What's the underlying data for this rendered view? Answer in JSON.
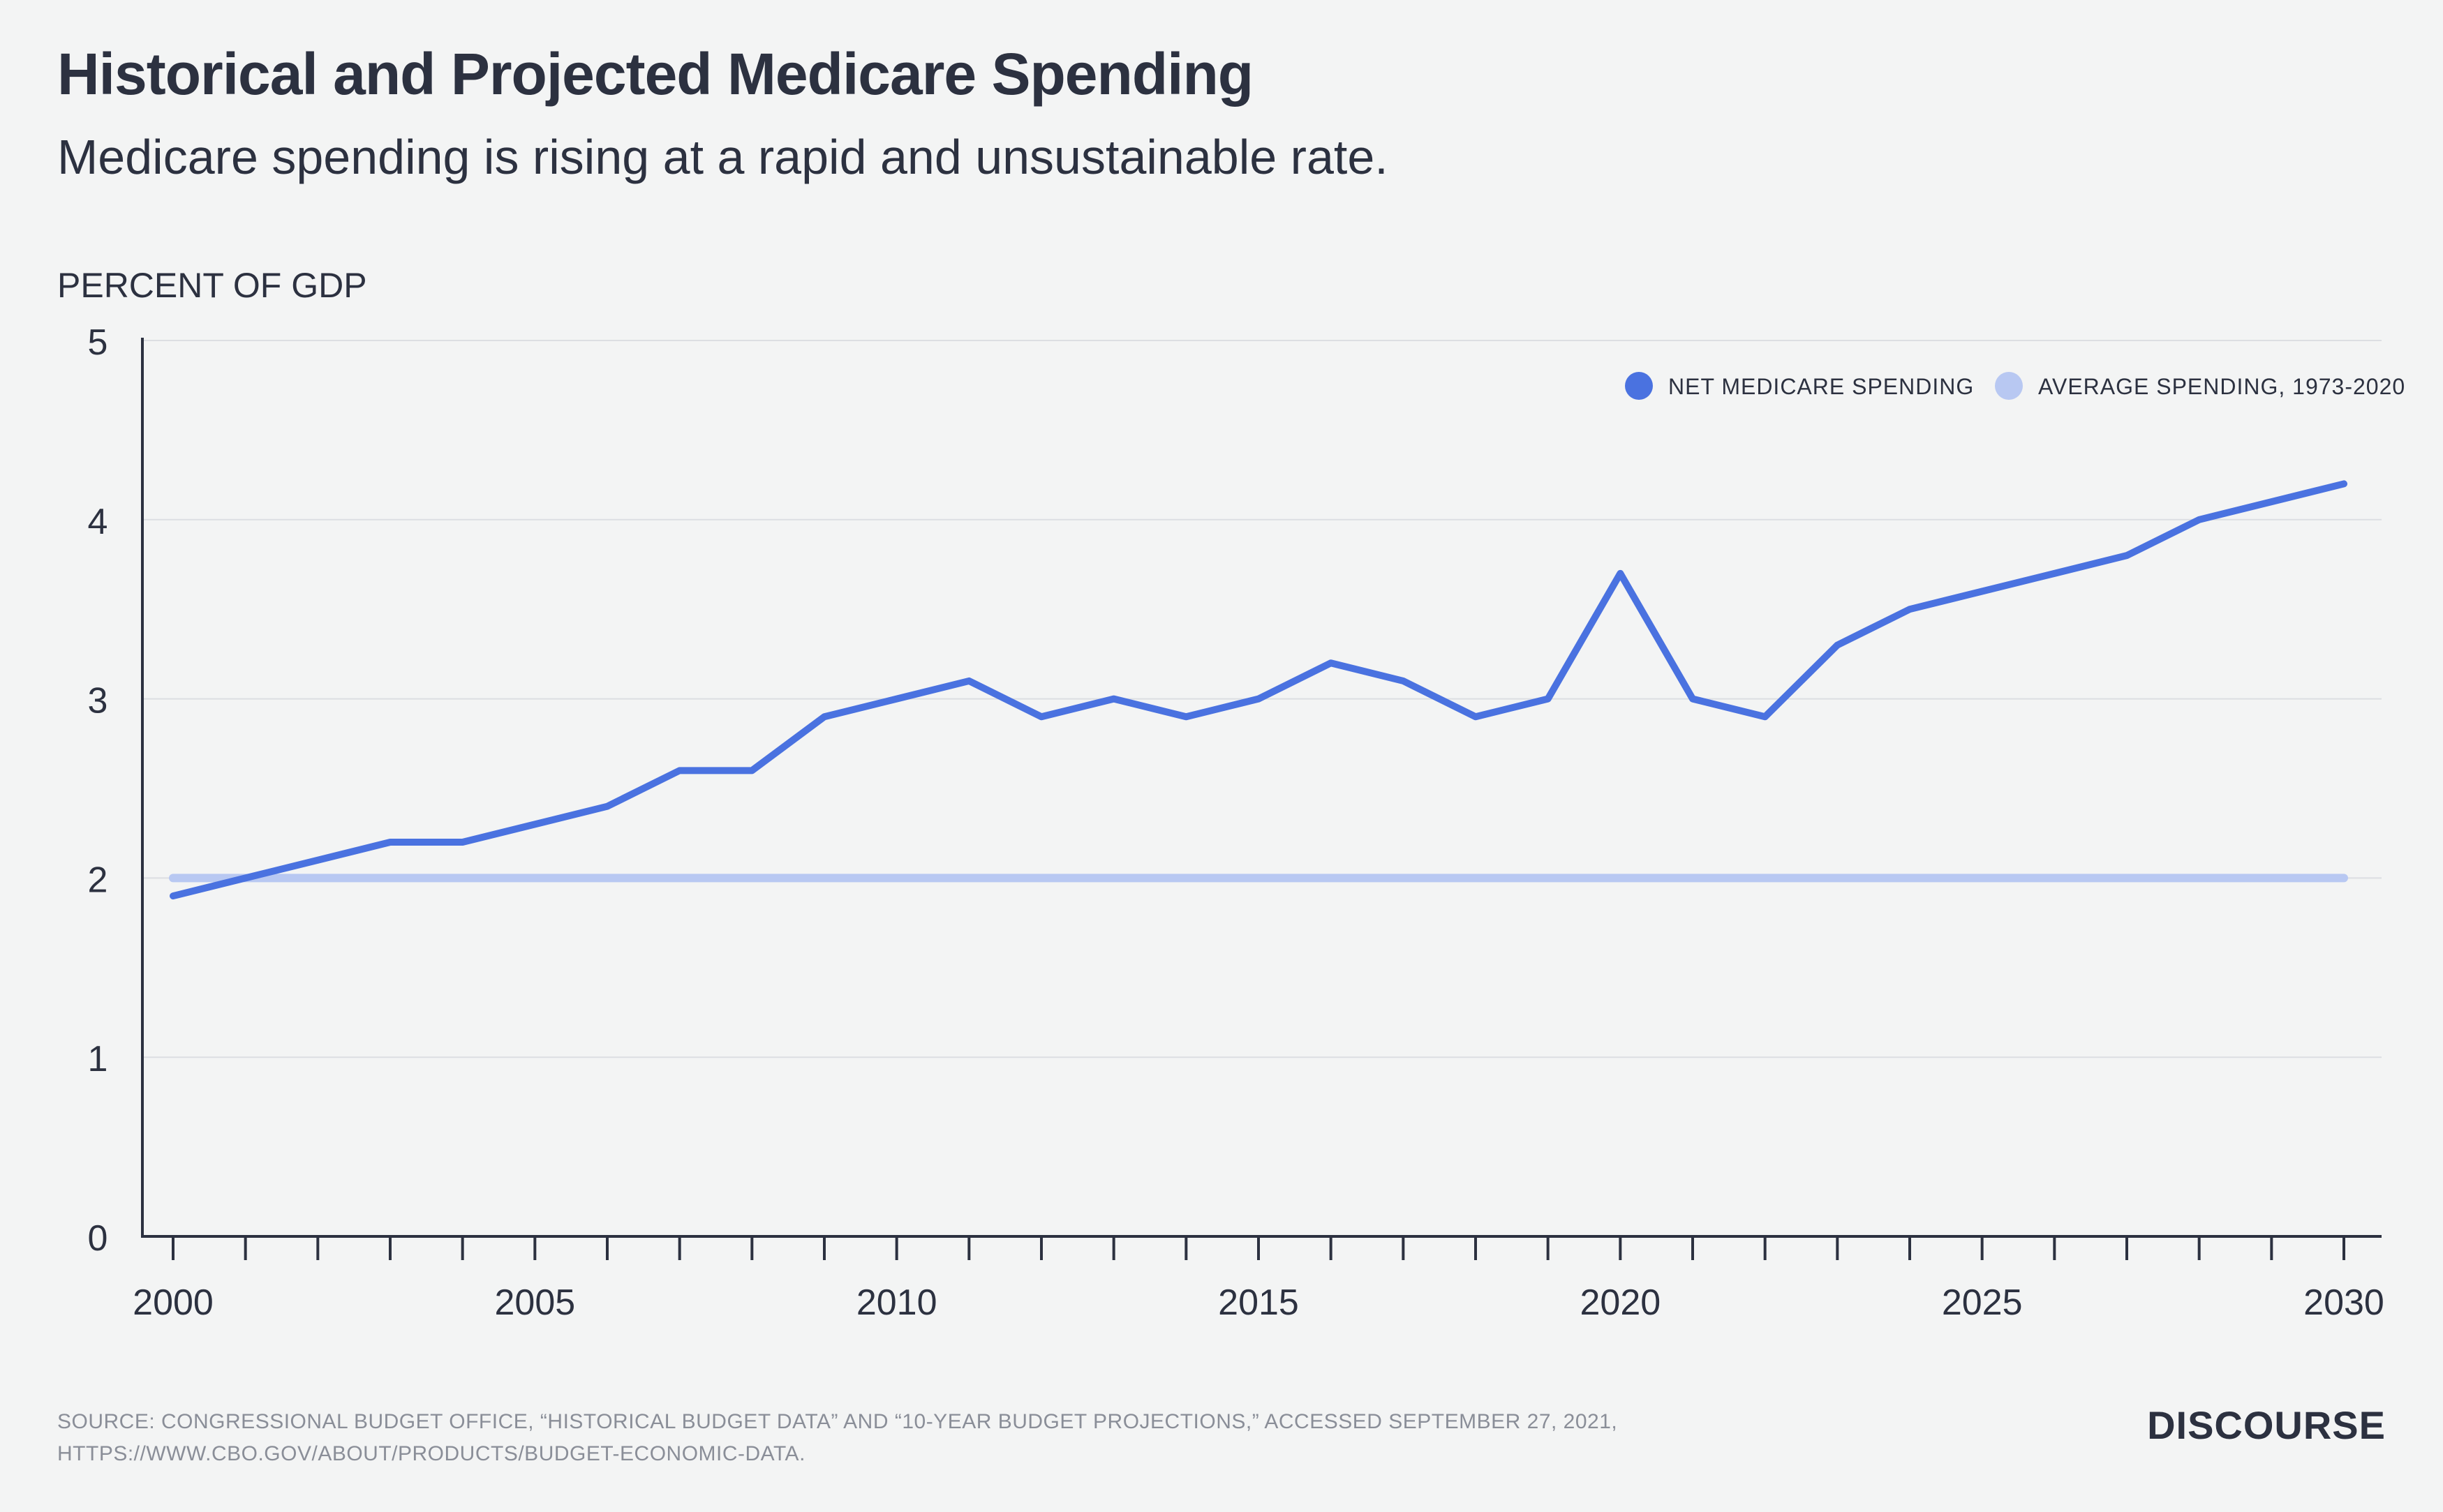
{
  "header": {
    "title": "Historical and Projected Medicare Spending",
    "subtitle": "Medicare spending is rising at a rapid and unsustainable rate."
  },
  "footer": {
    "source_line1": "SOURCE: CONGRESSIONAL BUDGET OFFICE, “HISTORICAL BUDGET DATA” AND “10-YEAR BUDGET PROJECTIONS,” ACCESSED SEPTEMBER 27, 2021,",
    "source_line2": "HTTPS://WWW.CBO.GOV/ABOUT/PRODUCTS/BUDGET-ECONOMIC-DATA.",
    "brand": "DISCOURSE"
  },
  "chart_data": {
    "type": "line",
    "title": "Historical and Projected Medicare Spending",
    "subtitle": "Medicare spending is rising at a rapid and unsustainable rate.",
    "ylabel": "PERCENT OF GDP",
    "xlabel": "",
    "xlim": [
      2000,
      2030
    ],
    "ylim": [
      0,
      5
    ],
    "x_ticks": [
      2000,
      2005,
      2010,
      2015,
      2020,
      2025,
      2030
    ],
    "y_ticks": [
      0,
      1,
      2,
      3,
      4,
      5
    ],
    "grid": true,
    "legend_position": "top-right",
    "x": [
      2000,
      2001,
      2002,
      2003,
      2004,
      2005,
      2006,
      2007,
      2008,
      2009,
      2010,
      2011,
      2012,
      2013,
      2014,
      2015,
      2016,
      2017,
      2018,
      2019,
      2020,
      2021,
      2022,
      2023,
      2024,
      2025,
      2026,
      2027,
      2028,
      2029,
      2030
    ],
    "series": [
      {
        "name": "NET MEDICARE SPENDING",
        "color": "#4a72e0",
        "values": [
          1.9,
          2.0,
          2.1,
          2.2,
          2.2,
          2.3,
          2.4,
          2.6,
          2.6,
          2.9,
          3.0,
          3.1,
          2.9,
          3.0,
          2.9,
          3.0,
          3.2,
          3.1,
          2.9,
          3.0,
          3.7,
          3.0,
          2.9,
          3.3,
          3.5,
          3.6,
          3.7,
          3.8,
          4.0,
          4.1,
          4.2
        ]
      },
      {
        "name": "AVERAGE SPENDING, 1973-2020",
        "color": "#b8c8f2",
        "values": [
          2.0,
          2.0,
          2.0,
          2.0,
          2.0,
          2.0,
          2.0,
          2.0,
          2.0,
          2.0,
          2.0,
          2.0,
          2.0,
          2.0,
          2.0,
          2.0,
          2.0,
          2.0,
          2.0,
          2.0,
          2.0,
          2.0,
          2.0,
          2.0,
          2.0,
          2.0,
          2.0,
          2.0,
          2.0,
          2.0,
          2.0
        ]
      }
    ]
  }
}
